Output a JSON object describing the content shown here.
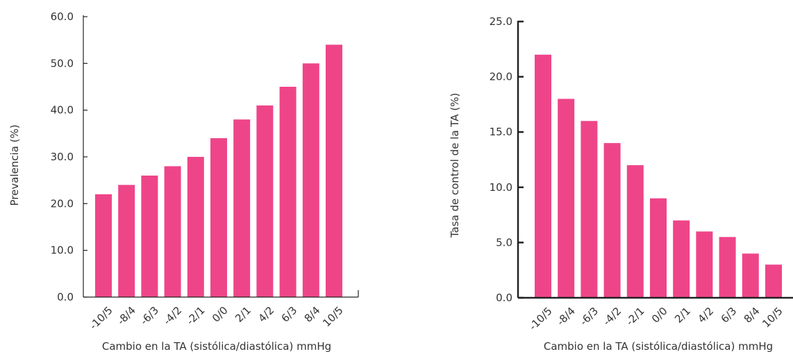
{
  "chart_data": [
    {
      "type": "bar",
      "categories": [
        "-10/5",
        "-8/4",
        "-6/3",
        "-4/2",
        "-2/1",
        "0/0",
        "2/1",
        "4/2",
        "6/3",
        "8/4",
        "10/5"
      ],
      "values": [
        22,
        24,
        26,
        28,
        30,
        34,
        38,
        41,
        45,
        50,
        54
      ],
      "xlabel": "Cambio en la TA (sistólica/diastólica) mmHg",
      "ylabel": "Prevalencia (%)",
      "ylim": [
        0,
        60
      ],
      "yticks": [
        "0.0",
        "10.0",
        "20.0",
        "30.0",
        "40.0",
        "50.0",
        "60.0"
      ],
      "color": "#ee4589",
      "grid": false
    },
    {
      "type": "bar",
      "categories": [
        "-10/5",
        "-8/4",
        "-6/3",
        "-4/2",
        "-2/1",
        "0/0",
        "2/1",
        "4/2",
        "6/3",
        "8/4",
        "10/5"
      ],
      "values": [
        22,
        18,
        16,
        14,
        12,
        9,
        7,
        6,
        5.5,
        4,
        3
      ],
      "xlabel": "Cambio en la TA (sistólica/diastólica) mmHg",
      "ylabel": "Tasa de control de la TA (%)",
      "ylim": [
        0,
        25
      ],
      "yticks": [
        "0.0",
        "5.0",
        "10.0",
        "15.0",
        "20.0",
        "25.0"
      ],
      "color": "#ee4589",
      "grid": false
    }
  ]
}
